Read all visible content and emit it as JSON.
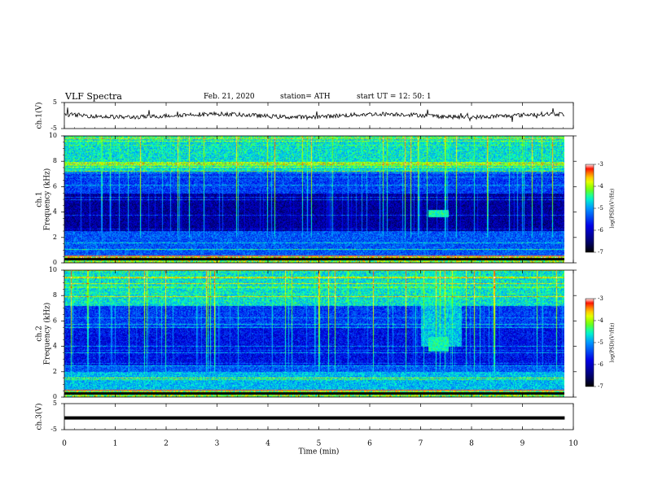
{
  "header": {
    "title": "VLF  Spectra",
    "date": "Feb. 21, 2020",
    "station": "station= ATH",
    "start": "start  UT  =    12: 50: 1"
  },
  "chart_data": [
    {
      "type": "line",
      "name": "ch1-waveform",
      "ylabel": "ch.1(V)",
      "ylim": [
        -5,
        5
      ],
      "yticks": [
        "5",
        "-5"
      ],
      "xlim": [
        0,
        10
      ]
    },
    {
      "type": "heatmap",
      "name": "ch1-spectrogram",
      "ylabel": "ch.1\nFrequency (kHz)",
      "ylim": [
        0,
        10
      ],
      "yticks": [
        "0",
        "2",
        "4",
        "6",
        "8",
        "10"
      ],
      "xlim": [
        0,
        10
      ],
      "data_end_x": 9.83,
      "colorbar": {
        "label": "log(PSD)(V²/Hz)",
        "range": [
          -7,
          -3
        ],
        "ticks": [
          "-3",
          "-4",
          "-5",
          "-6",
          "-7"
        ]
      }
    },
    {
      "type": "heatmap",
      "name": "ch2-spectrogram",
      "ylabel": "ch.2\nFrequency (kHz)",
      "ylim": [
        0,
        10
      ],
      "yticks": [
        "0",
        "2",
        "4",
        "6",
        "8",
        "10"
      ],
      "xlim": [
        0,
        10
      ],
      "data_end_x": 9.83,
      "colorbar": {
        "label": "log(PSD)(V²/Hz)",
        "range": [
          -7,
          -3
        ],
        "ticks": [
          "-3",
          "-4",
          "-5",
          "-6",
          "-7"
        ]
      }
    },
    {
      "type": "line",
      "name": "ch3-waveform",
      "ylabel": "ch.3(V)",
      "ylim": [
        -5,
        5
      ],
      "yticks": [
        "5",
        "-5"
      ],
      "xlim": [
        0,
        10
      ],
      "level": -0.5
    }
  ],
  "xaxis": {
    "label": "Time  (min)",
    "ticks": [
      "0",
      "1",
      "2",
      "3",
      "4",
      "5",
      "6",
      "7",
      "8",
      "9",
      "10"
    ]
  },
  "colors": {
    "frame": "#000000",
    "colormap": [
      "#000000",
      "#000080",
      "#0000ff",
      "#00bfff",
      "#00ff80",
      "#80ff00",
      "#ffff00",
      "#ff8000",
      "#ff0000",
      "#ffffff"
    ]
  }
}
